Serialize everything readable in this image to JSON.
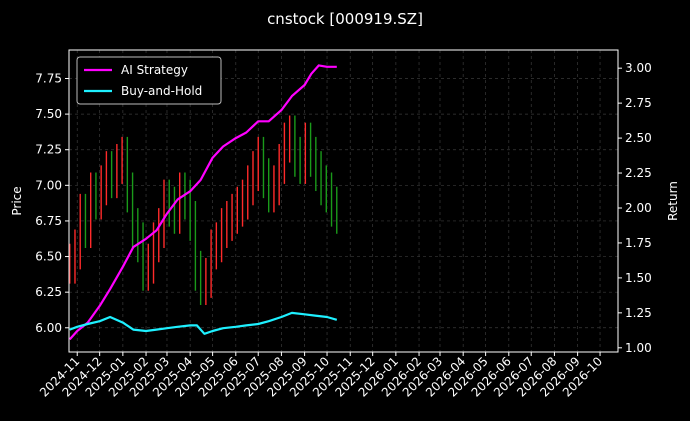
{
  "chart_data": {
    "type": "line",
    "title": "cnstock [000919.SZ]",
    "xlabel": "",
    "y_left_label": "Price",
    "y_right_label": "Return",
    "x_ticks": [
      "2024-11",
      "2024-12",
      "2025-01",
      "2025-02",
      "2025-03",
      "2025-04",
      "2025-05",
      "2025-06",
      "2025-07",
      "2025-08",
      "2025-09",
      "2025-10",
      "2025-11",
      "2025-12",
      "2026-01",
      "2026-02",
      "2026-03",
      "2026-04",
      "2026-05",
      "2026-06",
      "2026-07",
      "2026-08",
      "2026-09",
      "2026-10"
    ],
    "x_range": [
      "2024-10-21",
      "2026-10-25"
    ],
    "y_left_ticks": [
      "6.00",
      "6.25",
      "6.50",
      "6.75",
      "7.00",
      "7.25",
      "7.50",
      "7.75"
    ],
    "y_left_range": [
      5.83,
      7.95
    ],
    "y_right_ticks": [
      "1.00",
      "1.25",
      "1.50",
      "1.75",
      "2.00",
      "2.25",
      "2.50",
      "2.75",
      "3.00"
    ],
    "y_right_range": [
      0.97,
      3.13
    ],
    "grid": true,
    "legend_position": "top-left",
    "colors": {
      "up": "#ff2a2a",
      "down": "#1a9a1a",
      "ai": "#ff00ff",
      "bh": "#1ef0ff",
      "background": "#000000",
      "grid": "#3a3a3a"
    },
    "price": {
      "dates": [
        "2024-10-22",
        "2024-10-29",
        "2024-11-05",
        "2024-11-12",
        "2024-11-19",
        "2024-11-26",
        "2024-12-03",
        "2024-12-10",
        "2024-12-17",
        "2024-12-24",
        "2024-12-31",
        "2025-01-07",
        "2025-01-14",
        "2025-01-21",
        "2025-01-28",
        "2025-02-04",
        "2025-02-11",
        "2025-02-18",
        "2025-02-25",
        "2025-03-04",
        "2025-03-11",
        "2025-03-18",
        "2025-03-25",
        "2025-04-01",
        "2025-04-08",
        "2025-04-15",
        "2025-04-22",
        "2025-04-29",
        "2025-05-06",
        "2025-05-13",
        "2025-05-20",
        "2025-05-27",
        "2025-06-03",
        "2025-06-10",
        "2025-06-17",
        "2025-06-24",
        "2025-07-01",
        "2025-07-08",
        "2025-07-15",
        "2025-07-22",
        "2025-07-29",
        "2025-08-05",
        "2025-08-12",
        "2025-08-19",
        "2025-08-26",
        "2025-09-02",
        "2025-09-09",
        "2025-09-16",
        "2025-09-23",
        "2025-09-30",
        "2025-10-07",
        "2025-10-14"
      ],
      "close": [
        6.45,
        6.55,
        6.8,
        6.7,
        6.95,
        6.9,
        7.0,
        7.1,
        7.05,
        7.15,
        7.2,
        6.95,
        6.7,
        6.6,
        6.4,
        6.45,
        6.6,
        6.7,
        6.9,
        6.85,
        6.8,
        6.95,
        6.9,
        6.75,
        6.4,
        6.3,
        6.35,
        6.55,
        6.6,
        6.7,
        6.75,
        6.8,
        6.85,
        6.9,
        7.0,
        7.1,
        7.2,
        7.05,
        6.95,
        7.0,
        7.15,
        7.3,
        7.35,
        7.2,
        7.15,
        7.3,
        7.2,
        7.1,
        7.0,
        6.95,
        6.85,
        6.8
      ]
    },
    "series": [
      {
        "name": "AI Strategy",
        "dates": [
          "2024-10-22",
          "2024-11-01",
          "2024-11-15",
          "2024-12-01",
          "2024-12-15",
          "2025-01-01",
          "2025-01-15",
          "2025-02-01",
          "2025-02-15",
          "2025-03-01",
          "2025-03-15",
          "2025-04-01",
          "2025-04-15",
          "2025-05-01",
          "2025-05-15",
          "2025-06-01",
          "2025-06-15",
          "2025-07-01",
          "2025-07-15",
          "2025-08-01",
          "2025-08-15",
          "2025-09-01",
          "2025-09-10",
          "2025-09-20",
          "2025-10-01",
          "2025-10-14"
        ],
        "values": [
          1.06,
          1.12,
          1.18,
          1.3,
          1.42,
          1.58,
          1.72,
          1.78,
          1.84,
          1.96,
          2.06,
          2.12,
          2.2,
          2.36,
          2.44,
          2.5,
          2.54,
          2.62,
          2.62,
          2.7,
          2.8,
          2.88,
          2.96,
          3.02,
          3.01,
          3.01
        ]
      },
      {
        "name": "Buy-and-Hold",
        "dates": [
          "2024-10-22",
          "2024-11-01",
          "2024-11-15",
          "2024-12-01",
          "2024-12-15",
          "2025-01-01",
          "2025-01-15",
          "2025-02-01",
          "2025-02-15",
          "2025-03-01",
          "2025-03-15",
          "2025-04-01",
          "2025-04-10",
          "2025-04-20",
          "2025-05-01",
          "2025-05-15",
          "2025-06-01",
          "2025-06-15",
          "2025-07-01",
          "2025-07-15",
          "2025-08-01",
          "2025-08-15",
          "2025-09-01",
          "2025-09-15",
          "2025-10-01",
          "2025-10-14"
        ],
        "values": [
          1.13,
          1.15,
          1.17,
          1.19,
          1.22,
          1.18,
          1.13,
          1.12,
          1.13,
          1.14,
          1.15,
          1.16,
          1.16,
          1.1,
          1.12,
          1.14,
          1.15,
          1.16,
          1.17,
          1.19,
          1.22,
          1.25,
          1.24,
          1.23,
          1.22,
          1.2
        ]
      }
    ]
  }
}
